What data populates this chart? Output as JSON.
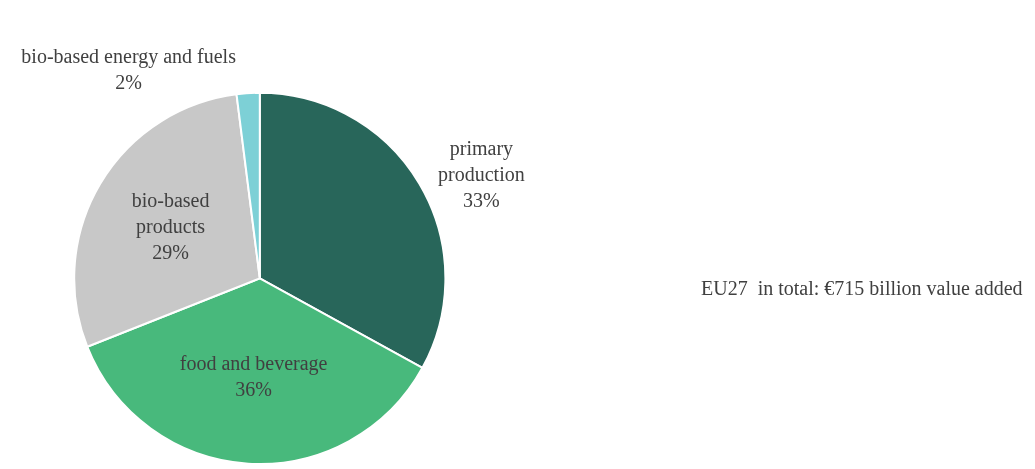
{
  "chart_data": {
    "type": "pie",
    "categories": [
      "primary production",
      "food and beverage",
      "bio-based products",
      "bio-based energy and fuels"
    ],
    "values": [
      33,
      36,
      29,
      2
    ],
    "value_labels": [
      "33%",
      "36%",
      "29%",
      "2%"
    ],
    "colors": [
      "#28665a",
      "#48b97c",
      "#c8c8c8",
      "#7dd0d6"
    ],
    "annotations": [
      "EU27  in total: €715 billion value added"
    ],
    "legend": false
  }
}
